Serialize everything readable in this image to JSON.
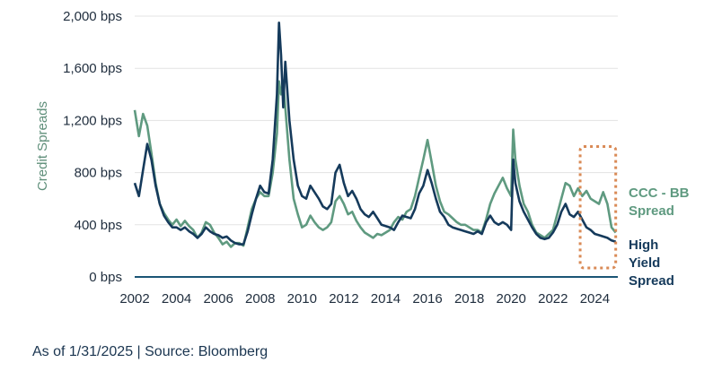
{
  "chart_data": {
    "type": "line",
    "ylabel": "Credit Spreads",
    "xlabel": "",
    "xlim": [
      2002,
      2025.1
    ],
    "ylim": [
      0,
      2000
    ],
    "x_ticks": [
      "2002",
      "2004",
      "2006",
      "2008",
      "2010",
      "2012",
      "2014",
      "2016",
      "2018",
      "2020",
      "2022",
      "2024"
    ],
    "y_ticks": [
      "0 bps",
      "400 bps",
      "800 bps",
      "1,200 bps",
      "1,600 bps",
      "2,000 bps"
    ],
    "highlight_range": [
      2023.3,
      2025.0
    ],
    "series": [
      {
        "name": "CCC - BB Spread",
        "name_lines": [
          "CCC - BB",
          "Spread"
        ],
        "color": "#5f9a80",
        "points": [
          [
            2002.0,
            1280
          ],
          [
            2002.2,
            1080
          ],
          [
            2002.4,
            1250
          ],
          [
            2002.6,
            1160
          ],
          [
            2002.8,
            950
          ],
          [
            2003.0,
            720
          ],
          [
            2003.2,
            560
          ],
          [
            2003.4,
            490
          ],
          [
            2003.6,
            440
          ],
          [
            2003.8,
            400
          ],
          [
            2004.0,
            440
          ],
          [
            2004.2,
            390
          ],
          [
            2004.4,
            430
          ],
          [
            2004.6,
            390
          ],
          [
            2004.8,
            360
          ],
          [
            2005.0,
            300
          ],
          [
            2005.2,
            340
          ],
          [
            2005.4,
            420
          ],
          [
            2005.6,
            400
          ],
          [
            2005.8,
            340
          ],
          [
            2006.0,
            300
          ],
          [
            2006.2,
            250
          ],
          [
            2006.4,
            270
          ],
          [
            2006.6,
            230
          ],
          [
            2006.8,
            260
          ],
          [
            2007.0,
            260
          ],
          [
            2007.2,
            240
          ],
          [
            2007.4,
            380
          ],
          [
            2007.6,
            520
          ],
          [
            2007.8,
            600
          ],
          [
            2008.0,
            650
          ],
          [
            2008.2,
            620
          ],
          [
            2008.4,
            620
          ],
          [
            2008.6,
            800
          ],
          [
            2008.8,
            1100
          ],
          [
            2008.9,
            1500
          ],
          [
            2009.0,
            1400
          ],
          [
            2009.1,
            1500
          ],
          [
            2009.2,
            1300
          ],
          [
            2009.4,
            900
          ],
          [
            2009.6,
            600
          ],
          [
            2009.8,
            480
          ],
          [
            2010.0,
            380
          ],
          [
            2010.2,
            400
          ],
          [
            2010.4,
            470
          ],
          [
            2010.6,
            420
          ],
          [
            2010.8,
            380
          ],
          [
            2011.0,
            360
          ],
          [
            2011.2,
            380
          ],
          [
            2011.4,
            420
          ],
          [
            2011.6,
            580
          ],
          [
            2011.8,
            620
          ],
          [
            2012.0,
            560
          ],
          [
            2012.2,
            480
          ],
          [
            2012.4,
            500
          ],
          [
            2012.6,
            430
          ],
          [
            2012.8,
            380
          ],
          [
            2013.0,
            340
          ],
          [
            2013.2,
            320
          ],
          [
            2013.4,
            300
          ],
          [
            2013.6,
            330
          ],
          [
            2013.8,
            320
          ],
          [
            2014.0,
            340
          ],
          [
            2014.2,
            360
          ],
          [
            2014.4,
            420
          ],
          [
            2014.6,
            460
          ],
          [
            2014.8,
            440
          ],
          [
            2015.0,
            500
          ],
          [
            2015.2,
            520
          ],
          [
            2015.4,
            620
          ],
          [
            2015.6,
            760
          ],
          [
            2015.8,
            900
          ],
          [
            2016.0,
            1050
          ],
          [
            2016.2,
            880
          ],
          [
            2016.4,
            700
          ],
          [
            2016.6,
            580
          ],
          [
            2016.8,
            500
          ],
          [
            2017.0,
            480
          ],
          [
            2017.2,
            450
          ],
          [
            2017.4,
            420
          ],
          [
            2017.6,
            400
          ],
          [
            2017.8,
            400
          ],
          [
            2018.0,
            380
          ],
          [
            2018.2,
            360
          ],
          [
            2018.4,
            360
          ],
          [
            2018.6,
            340
          ],
          [
            2018.8,
            440
          ],
          [
            2019.0,
            560
          ],
          [
            2019.2,
            640
          ],
          [
            2019.4,
            700
          ],
          [
            2019.6,
            760
          ],
          [
            2019.8,
            680
          ],
          [
            2020.0,
            620
          ],
          [
            2020.1,
            1130
          ],
          [
            2020.2,
            900
          ],
          [
            2020.4,
            700
          ],
          [
            2020.6,
            560
          ],
          [
            2020.8,
            500
          ],
          [
            2021.0,
            400
          ],
          [
            2021.2,
            340
          ],
          [
            2021.4,
            320
          ],
          [
            2021.6,
            300
          ],
          [
            2021.8,
            330
          ],
          [
            2022.0,
            360
          ],
          [
            2022.2,
            480
          ],
          [
            2022.4,
            600
          ],
          [
            2022.6,
            720
          ],
          [
            2022.8,
            700
          ],
          [
            2023.0,
            620
          ],
          [
            2023.2,
            680
          ],
          [
            2023.4,
            620
          ],
          [
            2023.6,
            660
          ],
          [
            2023.8,
            600
          ],
          [
            2024.0,
            580
          ],
          [
            2024.2,
            560
          ],
          [
            2024.4,
            650
          ],
          [
            2024.6,
            560
          ],
          [
            2024.8,
            380
          ],
          [
            2025.0,
            340
          ]
        ]
      },
      {
        "name": "High Yield Spread",
        "name_lines": [
          "High",
          "Yield",
          "Spread"
        ],
        "color": "#153a5b",
        "points": [
          [
            2002.0,
            720
          ],
          [
            2002.2,
            620
          ],
          [
            2002.4,
            820
          ],
          [
            2002.6,
            1020
          ],
          [
            2002.8,
            900
          ],
          [
            2003.0,
            700
          ],
          [
            2003.2,
            560
          ],
          [
            2003.4,
            470
          ],
          [
            2003.6,
            420
          ],
          [
            2003.8,
            380
          ],
          [
            2004.0,
            380
          ],
          [
            2004.2,
            360
          ],
          [
            2004.4,
            380
          ],
          [
            2004.6,
            350
          ],
          [
            2004.8,
            330
          ],
          [
            2005.0,
            300
          ],
          [
            2005.2,
            330
          ],
          [
            2005.4,
            380
          ],
          [
            2005.6,
            350
          ],
          [
            2005.8,
            330
          ],
          [
            2006.0,
            320
          ],
          [
            2006.2,
            300
          ],
          [
            2006.4,
            310
          ],
          [
            2006.6,
            280
          ],
          [
            2006.8,
            260
          ],
          [
            2007.0,
            250
          ],
          [
            2007.2,
            250
          ],
          [
            2007.4,
            350
          ],
          [
            2007.6,
            480
          ],
          [
            2007.8,
            600
          ],
          [
            2008.0,
            700
          ],
          [
            2008.2,
            650
          ],
          [
            2008.4,
            640
          ],
          [
            2008.6,
            900
          ],
          [
            2008.8,
            1400
          ],
          [
            2008.9,
            1950
          ],
          [
            2009.0,
            1700
          ],
          [
            2009.1,
            1300
          ],
          [
            2009.2,
            1650
          ],
          [
            2009.4,
            1200
          ],
          [
            2009.6,
            900
          ],
          [
            2009.8,
            700
          ],
          [
            2010.0,
            620
          ],
          [
            2010.2,
            600
          ],
          [
            2010.4,
            700
          ],
          [
            2010.6,
            650
          ],
          [
            2010.8,
            600
          ],
          [
            2011.0,
            540
          ],
          [
            2011.2,
            520
          ],
          [
            2011.4,
            560
          ],
          [
            2011.6,
            800
          ],
          [
            2011.8,
            860
          ],
          [
            2012.0,
            720
          ],
          [
            2012.2,
            620
          ],
          [
            2012.4,
            660
          ],
          [
            2012.6,
            600
          ],
          [
            2012.8,
            520
          ],
          [
            2013.0,
            480
          ],
          [
            2013.2,
            460
          ],
          [
            2013.4,
            500
          ],
          [
            2013.6,
            450
          ],
          [
            2013.8,
            400
          ],
          [
            2014.0,
            390
          ],
          [
            2014.2,
            380
          ],
          [
            2014.4,
            360
          ],
          [
            2014.6,
            420
          ],
          [
            2014.8,
            470
          ],
          [
            2015.0,
            460
          ],
          [
            2015.2,
            450
          ],
          [
            2015.4,
            520
          ],
          [
            2015.6,
            640
          ],
          [
            2015.8,
            700
          ],
          [
            2016.0,
            820
          ],
          [
            2016.2,
            720
          ],
          [
            2016.4,
            600
          ],
          [
            2016.6,
            500
          ],
          [
            2016.8,
            460
          ],
          [
            2017.0,
            400
          ],
          [
            2017.2,
            380
          ],
          [
            2017.4,
            370
          ],
          [
            2017.6,
            360
          ],
          [
            2017.8,
            350
          ],
          [
            2018.0,
            340
          ],
          [
            2018.2,
            330
          ],
          [
            2018.4,
            350
          ],
          [
            2018.6,
            330
          ],
          [
            2018.8,
            420
          ],
          [
            2019.0,
            470
          ],
          [
            2019.2,
            420
          ],
          [
            2019.4,
            400
          ],
          [
            2019.6,
            420
          ],
          [
            2019.8,
            400
          ],
          [
            2020.0,
            360
          ],
          [
            2020.1,
            900
          ],
          [
            2020.2,
            720
          ],
          [
            2020.4,
            580
          ],
          [
            2020.6,
            500
          ],
          [
            2020.8,
            440
          ],
          [
            2021.0,
            380
          ],
          [
            2021.2,
            330
          ],
          [
            2021.4,
            300
          ],
          [
            2021.6,
            290
          ],
          [
            2021.8,
            300
          ],
          [
            2022.0,
            340
          ],
          [
            2022.2,
            400
          ],
          [
            2022.4,
            500
          ],
          [
            2022.6,
            560
          ],
          [
            2022.8,
            480
          ],
          [
            2023.0,
            460
          ],
          [
            2023.2,
            500
          ],
          [
            2023.4,
            440
          ],
          [
            2023.6,
            380
          ],
          [
            2023.8,
            360
          ],
          [
            2024.0,
            330
          ],
          [
            2024.2,
            320
          ],
          [
            2024.4,
            310
          ],
          [
            2024.6,
            300
          ],
          [
            2024.8,
            280
          ],
          [
            2025.0,
            270
          ]
        ]
      }
    ]
  },
  "footer": "As of 1/31/2025 | Source: Bloomberg"
}
